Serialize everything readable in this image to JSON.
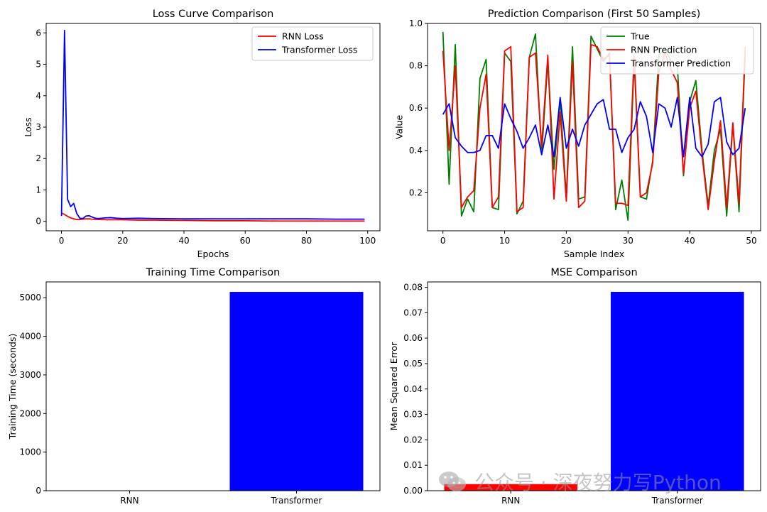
{
  "chart_data": [
    {
      "type": "line",
      "title": "Loss Curve Comparison",
      "xlabel": "Epochs",
      "ylabel": "Loss",
      "xlim": [
        -5,
        104
      ],
      "ylim": [
        -0.3,
        6.3
      ],
      "xticks": [
        0,
        20,
        40,
        60,
        80,
        100
      ],
      "yticks": [
        0,
        1,
        2,
        3,
        4,
        5,
        6
      ],
      "legend": "top-right",
      "series": [
        {
          "name": "RNN Loss",
          "color": "#ff0000",
          "x": [
            0,
            1,
            2,
            3,
            4,
            5,
            6,
            7,
            8,
            9,
            10,
            12,
            15,
            20,
            25,
            30,
            40,
            50,
            60,
            70,
            80,
            90,
            99
          ],
          "y": [
            0.27,
            0.22,
            0.16,
            0.11,
            0.08,
            0.06,
            0.06,
            0.07,
            0.08,
            0.08,
            0.07,
            0.06,
            0.05,
            0.05,
            0.04,
            0.04,
            0.03,
            0.02,
            0.02,
            0.01,
            0.01,
            0.01,
            0.01
          ]
        },
        {
          "name": "Transformer Loss",
          "color": "#0000ff",
          "x": [
            0,
            1,
            2,
            3,
            4,
            5,
            6,
            7,
            8,
            9,
            10,
            11,
            12,
            14,
            16,
            18,
            20,
            25,
            30,
            40,
            50,
            60,
            70,
            80,
            90,
            99
          ],
          "y": [
            0.17,
            6.08,
            0.7,
            0.47,
            0.57,
            0.25,
            0.1,
            0.09,
            0.17,
            0.18,
            0.14,
            0.1,
            0.09,
            0.11,
            0.12,
            0.1,
            0.09,
            0.1,
            0.09,
            0.08,
            0.08,
            0.08,
            0.08,
            0.08,
            0.07,
            0.07
          ]
        }
      ]
    },
    {
      "type": "line",
      "title": "Prediction Comparison (First 50 Samples)",
      "xlabel": "Sample Index",
      "ylabel": "Value",
      "xlim": [
        -2.5,
        51.5
      ],
      "ylim": [
        0.02,
        1.0
      ],
      "xticks": [
        0,
        10,
        20,
        30,
        40,
        50
      ],
      "yticks": [
        0.2,
        0.4,
        0.6,
        0.8,
        1.0
      ],
      "ytick_labels": [
        "0.2",
        "0.4",
        "0.6",
        "0.8",
        "1.0"
      ],
      "legend": "top-right",
      "series": [
        {
          "name": "True",
          "color": "#008000",
          "values": [
            0.96,
            0.24,
            0.9,
            0.09,
            0.17,
            0.11,
            0.74,
            0.83,
            0.13,
            0.12,
            0.86,
            0.82,
            0.1,
            0.16,
            0.84,
            0.95,
            0.38,
            0.82,
            0.31,
            0.64,
            0.18,
            0.89,
            0.17,
            0.18,
            0.94,
            0.88,
            0.82,
            0.86,
            0.12,
            0.26,
            0.07,
            0.82,
            0.18,
            0.17,
            0.35,
            0.85,
            0.88,
            0.82,
            0.8,
            0.28,
            0.63,
            0.73,
            0.4,
            0.14,
            0.4,
            0.5,
            0.09,
            0.52,
            0.11,
            0.86
          ]
        },
        {
          "name": "RNN Prediction",
          "color": "#ff0000",
          "values": [
            0.87,
            0.4,
            0.8,
            0.13,
            0.18,
            0.21,
            0.6,
            0.76,
            0.13,
            0.18,
            0.87,
            0.89,
            0.11,
            0.13,
            0.84,
            0.86,
            0.42,
            0.85,
            0.17,
            0.58,
            0.16,
            0.82,
            0.13,
            0.16,
            0.9,
            0.89,
            0.83,
            0.85,
            0.15,
            0.15,
            0.14,
            0.85,
            0.18,
            0.2,
            0.34,
            0.77,
            0.86,
            0.78,
            0.72,
            0.29,
            0.6,
            0.68,
            0.38,
            0.12,
            0.35,
            0.54,
            0.13,
            0.53,
            0.15,
            0.89
          ]
        },
        {
          "name": "Transformer Prediction",
          "color": "#0000ff",
          "values": [
            0.57,
            0.62,
            0.46,
            0.42,
            0.39,
            0.39,
            0.4,
            0.47,
            0.47,
            0.41,
            0.62,
            0.55,
            0.49,
            0.41,
            0.46,
            0.52,
            0.38,
            0.52,
            0.37,
            0.65,
            0.41,
            0.5,
            0.42,
            0.52,
            0.57,
            0.62,
            0.64,
            0.5,
            0.5,
            0.39,
            0.46,
            0.5,
            0.63,
            0.56,
            0.39,
            0.62,
            0.6,
            0.51,
            0.65,
            0.37,
            0.65,
            0.41,
            0.37,
            0.43,
            0.63,
            0.65,
            0.44,
            0.38,
            0.41,
            0.6
          ]
        }
      ]
    },
    {
      "type": "bar",
      "title": "Training Time Comparison",
      "xlabel": "",
      "ylabel": "Training Time (seconds)",
      "categories": [
        "RNN",
        "Transformer"
      ],
      "values": [
        0,
        5150
      ],
      "colors": [
        "#ff0000",
        "#0000ff"
      ],
      "ylim": [
        0,
        5408
      ],
      "yticks": [
        0,
        1000,
        2000,
        3000,
        4000,
        5000
      ]
    },
    {
      "type": "bar",
      "title": "MSE Comparison",
      "xlabel": "",
      "ylabel": "Mean Squared Error",
      "categories": [
        "RNN",
        "Transformer"
      ],
      "values": [
        0.0026,
        0.0782
      ],
      "colors": [
        "#ff0000",
        "#0000ff"
      ],
      "ylim": [
        0,
        0.0821
      ],
      "yticks": [
        0,
        0.01,
        0.02,
        0.03,
        0.04,
        0.05,
        0.06,
        0.07,
        0.08
      ],
      "ytick_labels": [
        "0.00",
        "0.01",
        "0.02",
        "0.03",
        "0.04",
        "0.05",
        "0.06",
        "0.07",
        "0.08"
      ]
    }
  ],
  "watermark": {
    "text": "公众号 · 深夜努力写Python",
    "icon": "wechat-icon"
  }
}
